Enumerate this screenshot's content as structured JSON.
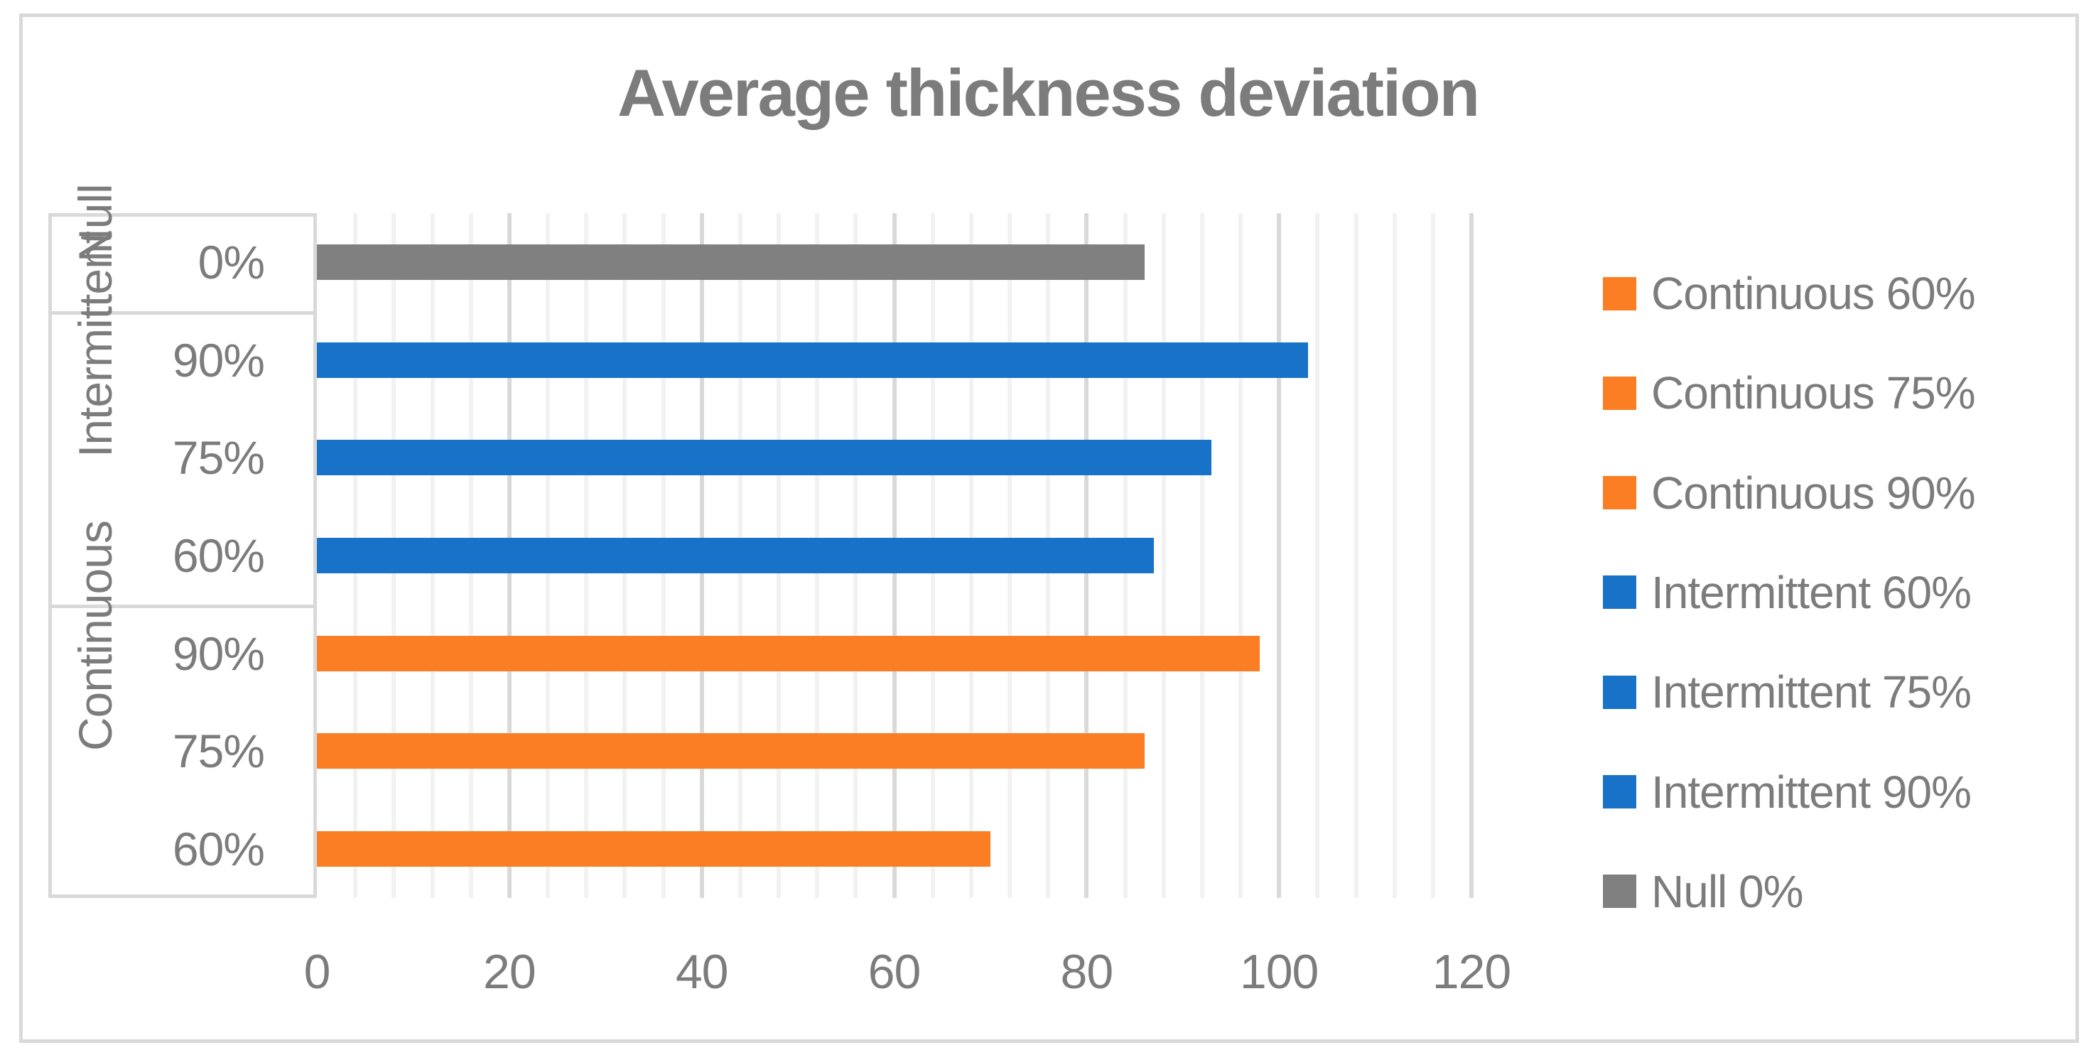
{
  "title": "Average thickness deviation",
  "colors": {
    "orange": "#FB7E24",
    "blue": "#1872C7",
    "gray": "#808080",
    "text": "#7C7C7C",
    "grid_major": "#D9D9D9",
    "grid_minor": "#F2F2F2",
    "border": "#D9D9D9"
  },
  "chart_data": {
    "type": "bar",
    "orientation": "horizontal",
    "title": "Average thickness deviation",
    "x_axis": {
      "min": 0,
      "max": 120,
      "major_unit": 20,
      "minor_unit": 4,
      "tick_labels": [
        "0",
        "20",
        "40",
        "60",
        "80",
        "100",
        "120"
      ]
    },
    "grid": {
      "major": true,
      "minor": true
    },
    "legend_position": "right",
    "groups": [
      {
        "label": "Null",
        "rows": [
          {
            "label": "0%",
            "series": "Null 0%",
            "value": 86,
            "color_key": "gray"
          }
        ]
      },
      {
        "label": "Intermittent",
        "rows": [
          {
            "label": "90%",
            "series": "Intermittent 90%",
            "value": 103,
            "color_key": "blue"
          },
          {
            "label": "75%",
            "series": "Intermittent 75%",
            "value": 93,
            "color_key": "blue"
          },
          {
            "label": "60%",
            "series": "Intermittent 60%",
            "value": 87,
            "color_key": "blue"
          }
        ]
      },
      {
        "label": "Continuous",
        "rows": [
          {
            "label": "90%",
            "series": "Continuous 90%",
            "value": 98,
            "color_key": "orange"
          },
          {
            "label": "75%",
            "series": "Continuous 75%",
            "value": 86,
            "color_key": "orange"
          },
          {
            "label": "60%",
            "series": "Continuous 60%",
            "value": 70,
            "color_key": "orange"
          }
        ]
      }
    ],
    "legend": [
      {
        "label": "Continuous 60%",
        "color_key": "orange"
      },
      {
        "label": "Continuous 75%",
        "color_key": "orange"
      },
      {
        "label": "Continuous 90%",
        "color_key": "orange"
      },
      {
        "label": "Intermittent 60%",
        "color_key": "blue"
      },
      {
        "label": "Intermittent 75%",
        "color_key": "blue"
      },
      {
        "label": "Intermittent 90%",
        "color_key": "blue"
      },
      {
        "label": "Null 0%",
        "color_key": "gray"
      }
    ]
  }
}
